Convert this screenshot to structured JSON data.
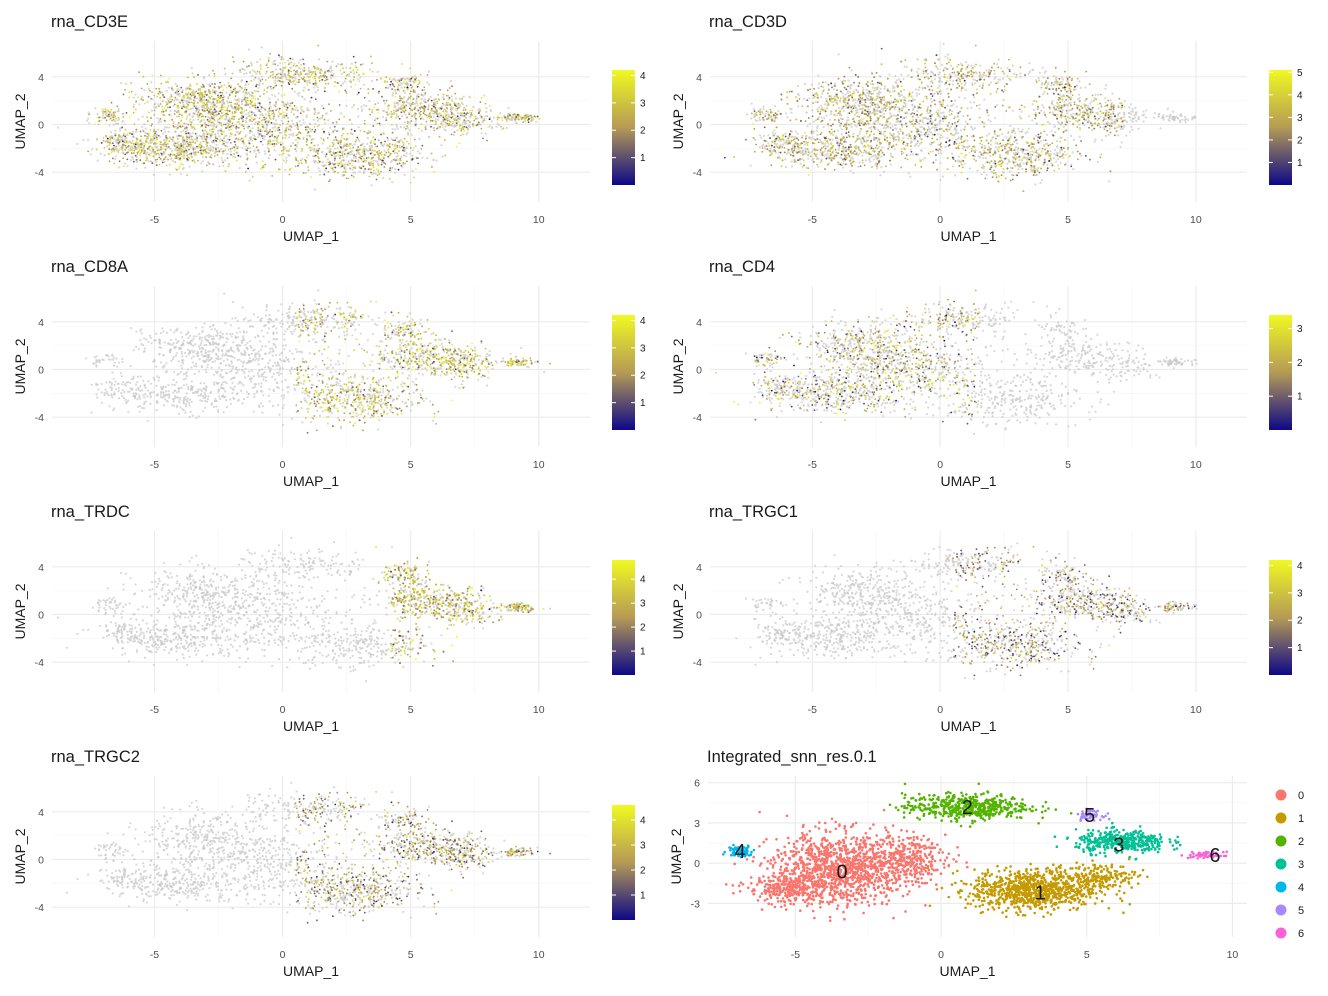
{
  "chart_data": [
    {
      "type": "scatter",
      "title": "rna_CD3E",
      "xlabel": "UMAP_1",
      "ylabel": "UMAP_2",
      "xlim": [
        -9,
        12
      ],
      "ylim": [
        -6.5,
        7
      ],
      "x_ticks": [
        -5,
        0,
        5,
        10
      ],
      "y_ticks": [
        -4,
        0,
        4
      ],
      "color_scale": {
        "min": 0,
        "max": 4.2,
        "ticks": [
          1,
          2,
          3,
          4
        ],
        "colors": [
          "#0d0887",
          "#b59a56",
          "#f0f921"
        ]
      },
      "expression_level": 2.6,
      "expression_coverage": 1.0,
      "expression_region": "all"
    },
    {
      "type": "scatter",
      "title": "rna_CD3D",
      "xlabel": "UMAP_1",
      "ylabel": "UMAP_2",
      "xlim": [
        -9,
        12
      ],
      "ylim": [
        -6.5,
        7
      ],
      "x_ticks": [
        -5,
        0,
        5,
        10
      ],
      "y_ticks": [
        -4,
        0,
        4
      ],
      "color_scale": {
        "min": 0,
        "max": 5.1,
        "ticks": [
          1,
          2,
          3,
          4,
          5
        ],
        "colors": [
          "#0d0887",
          "#b59a56",
          "#f0f921"
        ]
      },
      "expression_level": 2.9,
      "expression_coverage": 0.97,
      "expression_region": "main"
    },
    {
      "type": "scatter",
      "title": "rna_CD8A",
      "xlabel": "UMAP_1",
      "ylabel": "UMAP_2",
      "xlim": [
        -9,
        12
      ],
      "ylim": [
        -6.5,
        7
      ],
      "x_ticks": [
        -5,
        0,
        5,
        10
      ],
      "y_ticks": [
        -4,
        0,
        4
      ],
      "color_scale": {
        "min": 0,
        "max": 4.2,
        "ticks": [
          1,
          2,
          3,
          4
        ],
        "colors": [
          "#0d0887",
          "#b59a56",
          "#f0f921"
        ]
      },
      "expression_level": 2.8,
      "expression_coverage": 0.45,
      "expression_region": "right"
    },
    {
      "type": "scatter",
      "title": "rna_CD4",
      "xlabel": "UMAP_1",
      "ylabel": "UMAP_2",
      "xlim": [
        -9,
        12
      ],
      "ylim": [
        -6.5,
        7
      ],
      "x_ticks": [
        -5,
        0,
        5,
        10
      ],
      "y_ticks": [
        -4,
        0,
        4
      ],
      "color_scale": {
        "min": 0,
        "max": 3.4,
        "ticks": [
          1,
          2,
          3
        ],
        "colors": [
          "#0d0887",
          "#b59a56",
          "#f0f921"
        ]
      },
      "expression_level": 2.0,
      "expression_coverage": 0.35,
      "expression_region": "left"
    },
    {
      "type": "scatter",
      "title": "rna_TRDC",
      "xlabel": "UMAP_1",
      "ylabel": "UMAP_2",
      "xlim": [
        -9,
        12
      ],
      "ylim": [
        -6.5,
        7
      ],
      "x_ticks": [
        -5,
        0,
        5,
        10
      ],
      "y_ticks": [
        -4,
        0,
        4
      ],
      "color_scale": {
        "min": 0,
        "max": 4.8,
        "ticks": [
          1,
          2,
          3,
          4
        ],
        "colors": [
          "#0d0887",
          "#b59a56",
          "#f0f921"
        ]
      },
      "expression_level": 3.2,
      "expression_coverage": 0.55,
      "expression_region": "far-right"
    },
    {
      "type": "scatter",
      "title": "rna_TRGC1",
      "xlabel": "UMAP_1",
      "ylabel": "UMAP_2",
      "xlim": [
        -9,
        12
      ],
      "ylim": [
        -6.5,
        7
      ],
      "x_ticks": [
        -5,
        0,
        5,
        10
      ],
      "y_ticks": [
        -4,
        0,
        4
      ],
      "color_scale": {
        "min": 0,
        "max": 4.2,
        "ticks": [
          1,
          2,
          3,
          4
        ],
        "colors": [
          "#0d0887",
          "#b59a56",
          "#f0f921"
        ]
      },
      "expression_level": 1.9,
      "expression_coverage": 0.3,
      "expression_region": "right"
    },
    {
      "type": "scatter",
      "title": "rna_TRGC2",
      "xlabel": "UMAP_1",
      "ylabel": "UMAP_2",
      "xlim": [
        -9,
        12
      ],
      "ylim": [
        -6.5,
        7
      ],
      "x_ticks": [
        -5,
        0,
        5,
        10
      ],
      "y_ticks": [
        -4,
        0,
        4
      ],
      "color_scale": {
        "min": 0,
        "max": 4.6,
        "ticks": [
          1,
          2,
          3,
          4
        ],
        "colors": [
          "#0d0887",
          "#b59a56",
          "#f0f921"
        ]
      },
      "expression_level": 2.3,
      "expression_coverage": 0.4,
      "expression_region": "right"
    },
    {
      "type": "scatter",
      "title": "Integrated_snn_res.0.1",
      "xlabel": "UMAP_1",
      "ylabel": "UMAP_2",
      "xlim": [
        -8,
        10.5
      ],
      "ylim": [
        -5.5,
        6.5
      ],
      "x_ticks": [
        -5,
        0,
        5,
        10
      ],
      "y_ticks": [
        -3,
        0,
        3,
        6
      ],
      "legend": {
        "position": "right",
        "entries": [
          "0",
          "1",
          "2",
          "3",
          "4",
          "5",
          "6"
        ]
      },
      "clusters": [
        {
          "label": "0",
          "color": "#f8766d",
          "label_x": -3.4,
          "label_y": -0.6
        },
        {
          "label": "1",
          "color": "#c49a00",
          "label_x": 3.4,
          "label_y": -2.2
        },
        {
          "label": "2",
          "color": "#53b400",
          "label_x": 0.9,
          "label_y": 4.2
        },
        {
          "label": "3",
          "color": "#00c094",
          "label_x": 6.1,
          "label_y": 1.4
        },
        {
          "label": "4",
          "color": "#00b6eb",
          "label_x": -6.9,
          "label_y": 0.9
        },
        {
          "label": "5",
          "color": "#a58aff",
          "label_x": 5.1,
          "label_y": 3.6
        },
        {
          "label": "6",
          "color": "#fb61d7",
          "label_x": 9.4,
          "label_y": 0.6
        }
      ]
    }
  ]
}
